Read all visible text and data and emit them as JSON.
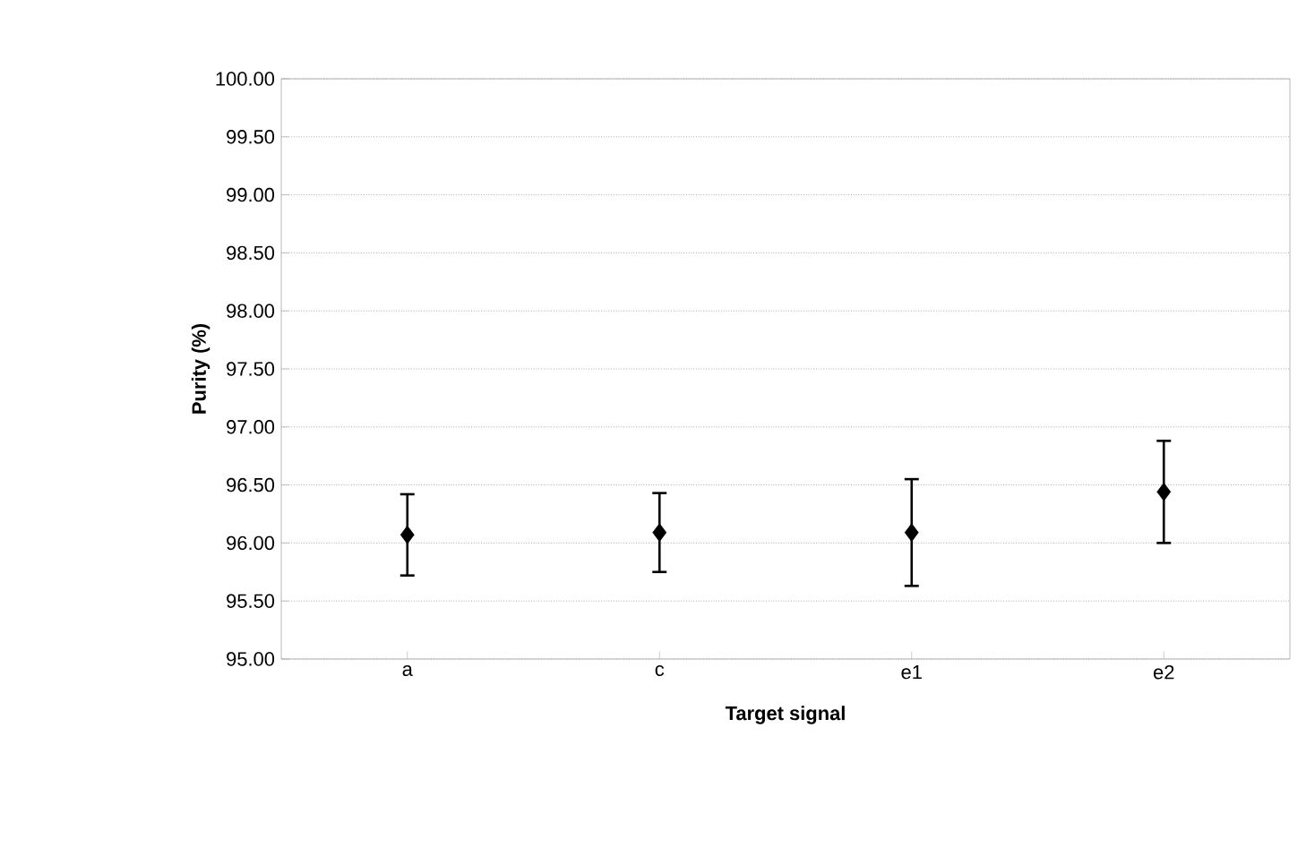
{
  "chart_data": {
    "type": "scatter",
    "xlabel": "Target signal",
    "ylabel": "Purity (%)",
    "categories": [
      "a",
      "c",
      "e1",
      "e2"
    ],
    "values": [
      96.07,
      96.09,
      96.09,
      96.44
    ],
    "errors": [
      0.35,
      0.34,
      0.46,
      0.44
    ],
    "color": "#000000",
    "marker": "diamond",
    "grid": "y",
    "ylim": [
      95,
      100
    ],
    "yticks": [
      {
        "value": 95,
        "label": "95.00"
      },
      {
        "value": 95.5,
        "label": "95.50"
      },
      {
        "value": 96,
        "label": "96.00"
      },
      {
        "value": 96.5,
        "label": "96.50"
      },
      {
        "value": 97,
        "label": "97.00"
      },
      {
        "value": 97.5,
        "label": "97.50"
      },
      {
        "value": 98,
        "label": "98.00"
      },
      {
        "value": 98.5,
        "label": "98.50"
      },
      {
        "value": 99,
        "label": "99.00"
      },
      {
        "value": 99.5,
        "label": "99.50"
      },
      {
        "value": 100,
        "label": "100.00"
      }
    ]
  }
}
